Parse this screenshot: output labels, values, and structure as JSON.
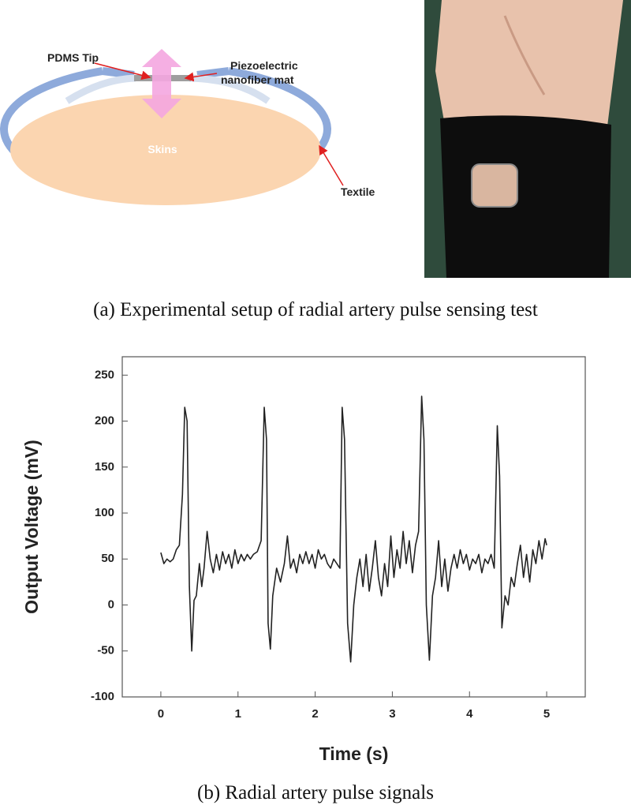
{
  "diagram": {
    "tip_label": "PDMS Tip",
    "mat_label_lines": [
      "Piezoelectric",
      "nanofiber mat"
    ],
    "skin_label": "Skins",
    "textile_label": "Textile"
  },
  "caption_a": "(a) Experimental setup of radial artery pulse sensing test",
  "caption_b": "(b) Radial artery pulse signals",
  "chart_data": {
    "type": "line",
    "x_label": "Time (s)",
    "y_label": "Output Voltage (mV)",
    "color": "#222222",
    "xlim": [
      -0.5,
      5.5
    ],
    "ylim": [
      -100,
      270
    ],
    "xticks": [
      0,
      1,
      2,
      3,
      4,
      5
    ],
    "yticks": [
      -100,
      -50,
      0,
      50,
      100,
      150,
      200,
      250
    ],
    "x": [
      0,
      0.04,
      0.08,
      0.12,
      0.16,
      0.2,
      0.24,
      0.28,
      0.31,
      0.34,
      0.37,
      0.4,
      0.43,
      0.46,
      0.5,
      0.53,
      0.56,
      0.6,
      0.64,
      0.68,
      0.72,
      0.76,
      0.8,
      0.84,
      0.88,
      0.92,
      0.96,
      1.0,
      1.04,
      1.08,
      1.12,
      1.16,
      1.2,
      1.25,
      1.3,
      1.34,
      1.37,
      1.39,
      1.42,
      1.45,
      1.5,
      1.55,
      1.6,
      1.64,
      1.68,
      1.72,
      1.76,
      1.8,
      1.84,
      1.88,
      1.92,
      1.96,
      2.0,
      2.04,
      2.08,
      2.12,
      2.16,
      2.2,
      2.24,
      2.28,
      2.32,
      2.35,
      2.38,
      2.42,
      2.46,
      2.5,
      2.54,
      2.58,
      2.62,
      2.66,
      2.7,
      2.74,
      2.78,
      2.82,
      2.86,
      2.9,
      2.94,
      2.98,
      3.02,
      3.06,
      3.1,
      3.14,
      3.18,
      3.22,
      3.26,
      3.3,
      3.34,
      3.38,
      3.41,
      3.44,
      3.48,
      3.52,
      3.56,
      3.6,
      3.64,
      3.68,
      3.72,
      3.76,
      3.8,
      3.84,
      3.88,
      3.92,
      3.96,
      4.0,
      4.04,
      4.08,
      4.12,
      4.16,
      4.2,
      4.24,
      4.28,
      4.32,
      4.36,
      4.39,
      4.42,
      4.46,
      4.5,
      4.54,
      4.58,
      4.62,
      4.66,
      4.7,
      4.74,
      4.78,
      4.82,
      4.86,
      4.9,
      4.94,
      4.98,
      5.0
    ],
    "values": [
      57,
      45,
      50,
      47,
      50,
      60,
      65,
      120,
      215,
      200,
      20,
      -50,
      5,
      10,
      45,
      20,
      40,
      80,
      50,
      35,
      55,
      38,
      58,
      45,
      55,
      40,
      60,
      45,
      55,
      48,
      55,
      50,
      55,
      58,
      70,
      215,
      180,
      -20,
      -48,
      10,
      40,
      25,
      45,
      75,
      40,
      50,
      35,
      55,
      45,
      58,
      45,
      55,
      40,
      60,
      50,
      55,
      45,
      40,
      50,
      45,
      40,
      215,
      180,
      -20,
      -62,
      0,
      30,
      50,
      20,
      55,
      15,
      40,
      70,
      30,
      10,
      45,
      20,
      75,
      30,
      60,
      40,
      80,
      45,
      70,
      35,
      65,
      80,
      227,
      180,
      0,
      -60,
      10,
      30,
      70,
      20,
      50,
      15,
      40,
      55,
      40,
      60,
      45,
      55,
      38,
      50,
      45,
      55,
      35,
      50,
      45,
      55,
      40,
      195,
      140,
      -25,
      10,
      0,
      30,
      20,
      45,
      65,
      30,
      55,
      25,
      60,
      45,
      70,
      50,
      72,
      65
    ]
  }
}
